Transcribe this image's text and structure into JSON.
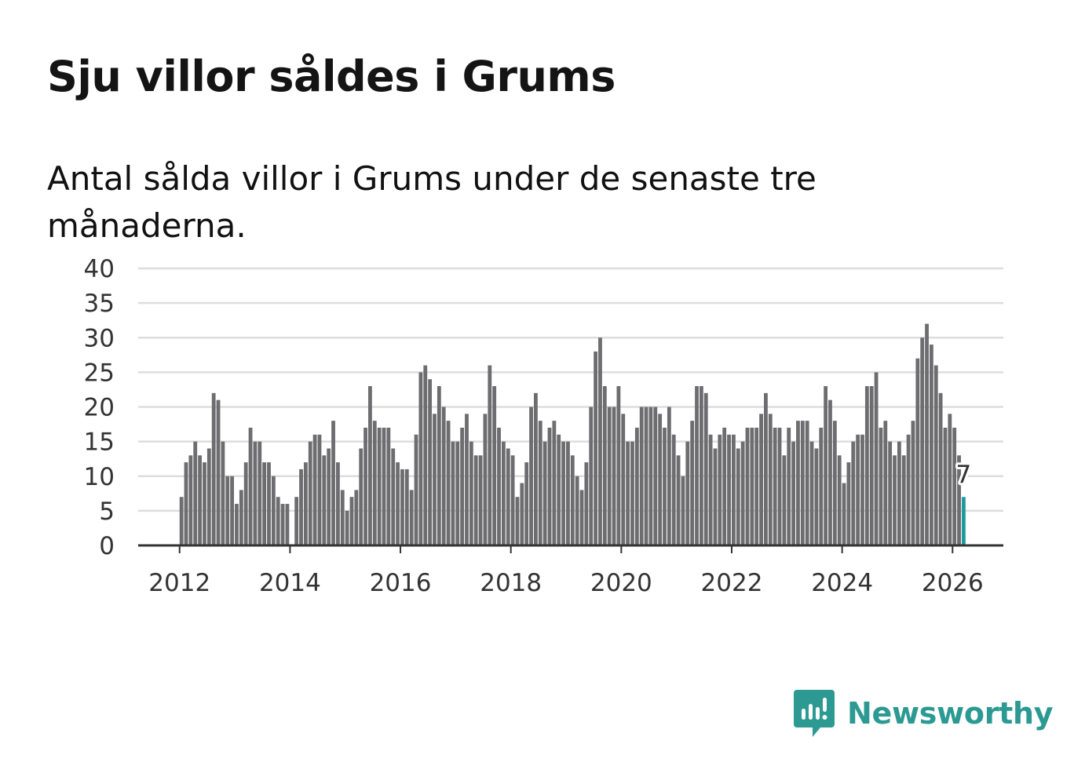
{
  "header": {
    "title": "Sju villor såldes i Grums",
    "subtitle": "Antal sålda villor i Grums under de senaste tre månaderna."
  },
  "brand": {
    "name": "Newsworthy"
  },
  "colors": {
    "bar": "#6d6d70",
    "highlight": "#1f9a9c",
    "grid": "#dddddd",
    "axis": "#333333",
    "brand": "#2c9a93"
  },
  "chart_data": {
    "type": "bar",
    "title": "Sju villor såldes i Grums",
    "subtitle": "Antal sålda villor i Grums under de senaste tre månaderna.",
    "xlabel": "",
    "ylabel": "",
    "ylim": [
      0,
      40
    ],
    "yticks": [
      0,
      5,
      10,
      15,
      20,
      25,
      30,
      35,
      40
    ],
    "xlim": [
      2011.25,
      2026.92
    ],
    "xticks": [
      "2012",
      "2014",
      "2016",
      "2018",
      "2020",
      "2022",
      "2024",
      "2026"
    ],
    "start": "2012-01",
    "highlight_label": "7",
    "categories": [
      "2012-01",
      "2012-02",
      "2012-03",
      "2012-04",
      "2012-05",
      "2012-06",
      "2012-07",
      "2012-08",
      "2012-09",
      "2012-10",
      "2012-11",
      "2012-12",
      "2013-01",
      "2013-02",
      "2013-03",
      "2013-04",
      "2013-05",
      "2013-06",
      "2013-07",
      "2013-08",
      "2013-09",
      "2013-10",
      "2013-11",
      "2013-12",
      "2014-01",
      "2014-02",
      "2014-03",
      "2014-04",
      "2014-05",
      "2014-06",
      "2014-07",
      "2014-08",
      "2014-09",
      "2014-10",
      "2014-11",
      "2014-12",
      "2015-01",
      "2015-02",
      "2015-03",
      "2015-04",
      "2015-05",
      "2015-06",
      "2015-07",
      "2015-08",
      "2015-09",
      "2015-10",
      "2015-11",
      "2015-12",
      "2016-01",
      "2016-02",
      "2016-03",
      "2016-04",
      "2016-05",
      "2016-06",
      "2016-07",
      "2016-08",
      "2016-09",
      "2016-10",
      "2016-11",
      "2016-12",
      "2017-01",
      "2017-02",
      "2017-03",
      "2017-04",
      "2017-05",
      "2017-06",
      "2017-07",
      "2017-08",
      "2017-09",
      "2017-10",
      "2017-11",
      "2017-12",
      "2018-01",
      "2018-02",
      "2018-03",
      "2018-04",
      "2018-05",
      "2018-06",
      "2018-07",
      "2018-08",
      "2018-09",
      "2018-10",
      "2018-11",
      "2018-12",
      "2019-01",
      "2019-02",
      "2019-03",
      "2019-04",
      "2019-05",
      "2019-06",
      "2019-07",
      "2019-08",
      "2019-09",
      "2019-10",
      "2019-11",
      "2019-12",
      "2020-01",
      "2020-02",
      "2020-03",
      "2020-04",
      "2020-05",
      "2020-06",
      "2020-07",
      "2020-08",
      "2020-09",
      "2020-10",
      "2020-11",
      "2020-12",
      "2021-01",
      "2021-02",
      "2021-03",
      "2021-04",
      "2021-05",
      "2021-06",
      "2021-07",
      "2021-08",
      "2021-09",
      "2021-10",
      "2021-11",
      "2021-12",
      "2022-01",
      "2022-02",
      "2022-03",
      "2022-04",
      "2022-05",
      "2022-06",
      "2022-07",
      "2022-08",
      "2022-09",
      "2022-10",
      "2022-11",
      "2022-12",
      "2023-01",
      "2023-02",
      "2023-03",
      "2023-04",
      "2023-05",
      "2023-06",
      "2023-07",
      "2023-08",
      "2023-09",
      "2023-10",
      "2023-11",
      "2023-12",
      "2024-01",
      "2024-02",
      "2024-03",
      "2024-04",
      "2024-05",
      "2024-06",
      "2024-07",
      "2024-08",
      "2024-09",
      "2024-10",
      "2024-11",
      "2024-12",
      "2025-01",
      "2025-02",
      "2025-03",
      "2025-04",
      "2025-05",
      "2025-06",
      "2025-07",
      "2025-08",
      "2025-09",
      "2025-10",
      "2025-11",
      "2025-12",
      "2026-01",
      "2026-02",
      "2026-03"
    ],
    "values": [
      7,
      12,
      13,
      15,
      13,
      12,
      14,
      22,
      21,
      15,
      10,
      10,
      6,
      8,
      12,
      17,
      15,
      15,
      12,
      12,
      10,
      7,
      6,
      6,
      0,
      7,
      11,
      12,
      15,
      16,
      16,
      13,
      14,
      18,
      12,
      8,
      5,
      7,
      8,
      14,
      17,
      23,
      18,
      17,
      17,
      17,
      14,
      12,
      11,
      11,
      8,
      16,
      25,
      26,
      24,
      19,
      23,
      20,
      18,
      15,
      15,
      17,
      19,
      15,
      13,
      13,
      19,
      26,
      23,
      17,
      15,
      14,
      13,
      7,
      9,
      12,
      20,
      22,
      18,
      15,
      17,
      18,
      16,
      15,
      15,
      13,
      10,
      8,
      12,
      20,
      28,
      30,
      23,
      20,
      20,
      23,
      19,
      15,
      15,
      17,
      20,
      20,
      20,
      20,
      19,
      17,
      20,
      16,
      13,
      10,
      15,
      18,
      23,
      23,
      22,
      16,
      14,
      16,
      17,
      16,
      16,
      14,
      15,
      17,
      17,
      17,
      19,
      22,
      19,
      17,
      17,
      13,
      17,
      15,
      18,
      18,
      18,
      15,
      14,
      17,
      23,
      21,
      18,
      13,
      9,
      12,
      15,
      16,
      16,
      23,
      23,
      25,
      17,
      18,
      15,
      13,
      15,
      13,
      16,
      18,
      27,
      30,
      32,
      29,
      26,
      22,
      17,
      19,
      17,
      13,
      7
    ]
  }
}
